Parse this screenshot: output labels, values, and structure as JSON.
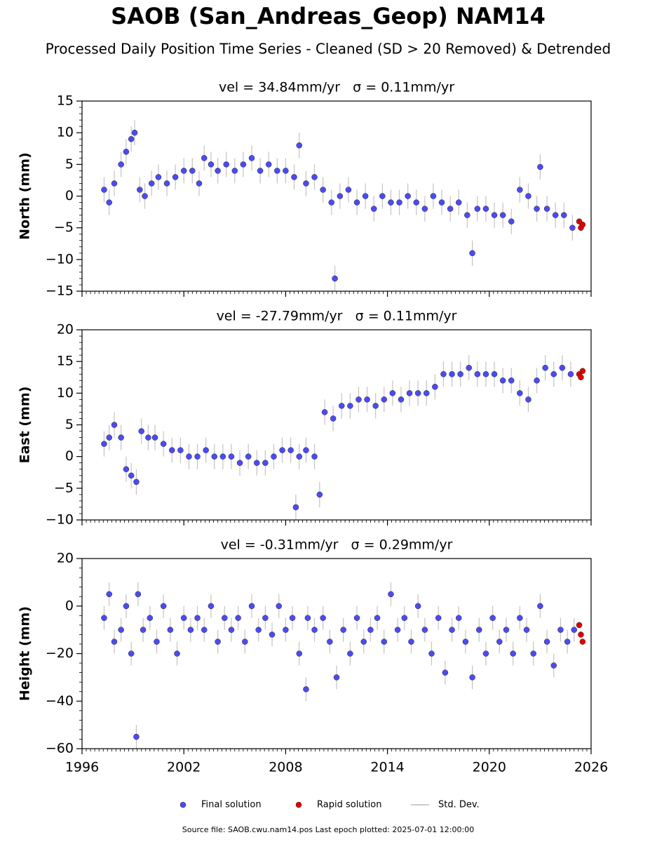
{
  "title": "SAOB (San_Andreas_Geop) NAM14",
  "subtitle": "Processed Daily Position Time Series - Cleaned (SD > 20 Removed) & Detrended",
  "std_dev_name": "Std. Dev.",
  "footer": "Source file: SAOB.cwu.nam14.pos  Last epoch plotted: 2025-07-01 12:00:00",
  "chart_data": [
    {
      "type": "scatter",
      "title": "vel = 34.84mm/yr   σ = 0.11mm/yr",
      "y_label": "North (mm)",
      "xlim": [
        1996,
        2026
      ],
      "xticks": [
        1996,
        2002,
        2008,
        2014,
        2020,
        2026
      ],
      "ylim": [
        -15,
        15
      ],
      "yticks": [
        {
          "value": -15,
          "label": "−15"
        },
        {
          "value": -10,
          "label": "−10"
        },
        {
          "value": -5,
          "label": "−5"
        },
        0,
        5,
        10,
        15
      ],
      "series": [
        {
          "name": "Final solution",
          "color": "#4b4bf5",
          "std_dev": 2,
          "x": [
            1997.3,
            1997.6,
            1997.9,
            1998.3,
            1998.6,
            1998.9,
            1999.1,
            1999.4,
            1999.7,
            2000.1,
            2000.5,
            2001.0,
            2001.5,
            2002.0,
            2002.5,
            2002.9,
            2003.2,
            2003.6,
            2004.0,
            2004.5,
            2005.0,
            2005.5,
            2006.0,
            2006.5,
            2007.0,
            2007.5,
            2008.0,
            2008.5,
            2008.8,
            2009.2,
            2009.7,
            2010.2,
            2010.7,
            2010.9,
            2011.2,
            2011.7,
            2012.2,
            2012.7,
            2013.2,
            2013.7,
            2014.2,
            2014.7,
            2015.2,
            2015.7,
            2016.2,
            2016.7,
            2017.2,
            2017.7,
            2018.2,
            2018.7,
            2019.0,
            2019.3,
            2019.8,
            2020.3,
            2020.8,
            2021.3,
            2021.8,
            2022.3,
            2022.8,
            2023.0,
            2023.4,
            2023.9,
            2024.4,
            2024.9
          ],
          "values": [
            1,
            -1,
            2,
            5,
            7,
            9,
            10,
            1,
            0,
            2,
            3,
            2,
            3,
            4,
            4,
            2,
            6,
            5,
            4,
            5,
            4,
            5,
            6,
            4,
            5,
            4,
            4,
            3,
            8,
            2,
            3,
            1,
            -1,
            -13,
            0,
            1,
            -1,
            0,
            -2,
            0,
            -1,
            -1,
            0,
            -1,
            -2,
            0,
            -1,
            -2,
            -1,
            -3,
            -9,
            -2,
            -2,
            -3,
            -3,
            -4,
            1,
            0,
            -2,
            4.6,
            -2,
            -3,
            -3,
            -5
          ]
        },
        {
          "name": "Rapid solution",
          "color": "#e00000",
          "x": [
            2025.3,
            2025.4,
            2025.5
          ],
          "values": [
            -4,
            -5,
            -4.5
          ]
        }
      ]
    },
    {
      "type": "scatter",
      "title": "vel = -27.79mm/yr   σ = 0.11mm/yr",
      "y_label": "East (mm)",
      "xlim": [
        1996,
        2026
      ],
      "xticks": [
        1996,
        2002,
        2008,
        2014,
        2020,
        2026
      ],
      "ylim": [
        -10,
        20
      ],
      "yticks": [
        {
          "value": -10,
          "label": "−10"
        },
        {
          "value": -5,
          "label": "−5"
        },
        0,
        5,
        10,
        15,
        20
      ],
      "series": [
        {
          "name": "Final solution",
          "color": "#4b4bf5",
          "std_dev": 2,
          "x": [
            1997.3,
            1997.6,
            1997.9,
            1998.3,
            1998.6,
            1998.9,
            1999.2,
            1999.5,
            1999.9,
            2000.3,
            2000.8,
            2001.3,
            2001.8,
            2002.3,
            2002.8,
            2003.3,
            2003.8,
            2004.3,
            2004.8,
            2005.3,
            2005.8,
            2006.3,
            2006.8,
            2007.3,
            2007.8,
            2008.3,
            2008.6,
            2008.8,
            2009.2,
            2009.7,
            2010.0,
            2010.3,
            2010.8,
            2011.3,
            2011.8,
            2012.3,
            2012.8,
            2013.3,
            2013.8,
            2014.3,
            2014.8,
            2015.3,
            2015.8,
            2016.3,
            2016.8,
            2017.3,
            2017.8,
            2018.3,
            2018.8,
            2019.3,
            2019.8,
            2020.3,
            2020.8,
            2021.3,
            2021.8,
            2022.3,
            2022.8,
            2023.3,
            2023.8,
            2024.3,
            2024.8
          ],
          "values": [
            2,
            3,
            5,
            3,
            -2,
            -3,
            -4,
            4,
            3,
            3,
            2,
            1,
            1,
            0,
            0,
            1,
            0,
            0,
            0,
            -1,
            0,
            -1,
            -1,
            0,
            1,
            1,
            -8,
            0,
            1,
            0,
            -6,
            7,
            6,
            8,
            8,
            9,
            9,
            8,
            9,
            10,
            9,
            10,
            10,
            10,
            11,
            13,
            13,
            13,
            14,
            13,
            13,
            13,
            12,
            12,
            10,
            9,
            12,
            14,
            13,
            14,
            13
          ]
        },
        {
          "name": "Rapid solution",
          "color": "#e00000",
          "x": [
            2025.3,
            2025.4,
            2025.5
          ],
          "values": [
            13,
            12.5,
            13.5
          ]
        }
      ]
    },
    {
      "type": "scatter",
      "title": "vel = -0.31mm/yr   σ = 0.29mm/yr",
      "y_label": "Height (mm)",
      "xlim": [
        1996,
        2026
      ],
      "xticks": [
        1996,
        2002,
        2008,
        2014,
        2020,
        2026
      ],
      "ylim": [
        -60,
        20
      ],
      "yticks": [
        {
          "value": -60,
          "label": "−60"
        },
        {
          "value": -40,
          "label": "−40"
        },
        {
          "value": -20,
          "label": "−20"
        },
        0,
        20
      ],
      "series": [
        {
          "name": "Final solution",
          "color": "#4b4bf5",
          "std_dev": 5,
          "x": [
            1997.3,
            1997.6,
            1997.9,
            1998.3,
            1998.6,
            1998.9,
            1999.2,
            1999.3,
            1999.6,
            2000.0,
            2000.4,
            2000.8,
            2001.2,
            2001.6,
            2002.0,
            2002.4,
            2002.8,
            2003.2,
            2003.6,
            2004.0,
            2004.4,
            2004.8,
            2005.2,
            2005.6,
            2006.0,
            2006.4,
            2006.8,
            2007.2,
            2007.6,
            2008.0,
            2008.4,
            2008.8,
            2009.2,
            2009.3,
            2009.7,
            2010.2,
            2010.6,
            2011.0,
            2011.4,
            2011.8,
            2012.2,
            2012.6,
            2013.0,
            2013.4,
            2013.8,
            2014.2,
            2014.6,
            2015.0,
            2015.4,
            2015.8,
            2016.2,
            2016.6,
            2017.0,
            2017.4,
            2017.8,
            2018.2,
            2018.6,
            2019.0,
            2019.4,
            2019.8,
            2020.2,
            2020.6,
            2021.0,
            2021.4,
            2021.8,
            2022.2,
            2022.6,
            2023.0,
            2023.4,
            2023.8,
            2024.2,
            2024.6,
            2025.0
          ],
          "values": [
            -5,
            5,
            -15,
            -10,
            0,
            -20,
            -55,
            5,
            -10,
            -5,
            -15,
            0,
            -10,
            -20,
            -5,
            -10,
            -5,
            -10,
            0,
            -15,
            -5,
            -10,
            -5,
            -15,
            0,
            -10,
            -5,
            -12,
            0,
            -10,
            -5,
            -20,
            -35,
            -5,
            -10,
            -5,
            -15,
            -30,
            -10,
            -20,
            -5,
            -15,
            -10,
            -5,
            -15,
            5,
            -10,
            -5,
            -15,
            0,
            -10,
            -20,
            -5,
            -28,
            -10,
            -5,
            -15,
            -30,
            -10,
            -20,
            -5,
            -15,
            -10,
            -20,
            -5,
            -10,
            -20,
            0,
            -15,
            -25,
            -10,
            -15,
            -10
          ]
        },
        {
          "name": "Rapid solution",
          "color": "#e00000",
          "x": [
            2025.3,
            2025.4,
            2025.5
          ],
          "values": [
            -8,
            -12,
            -15
          ]
        }
      ]
    }
  ]
}
